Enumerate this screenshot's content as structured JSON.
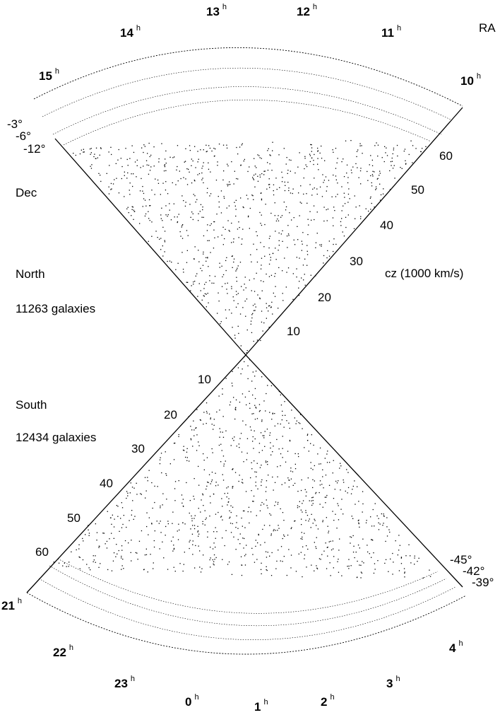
{
  "figure": {
    "ra_axis_label": "RA",
    "cz_axis_label": "cz (1000 km/s)",
    "dec_label": "Dec",
    "north": {
      "title": "North",
      "count_text": "11263 galaxies",
      "dec_labels": [
        "-3°",
        "-6°",
        "-12°"
      ],
      "ra_hours": [
        "15",
        "14",
        "13",
        "12",
        "11",
        "10"
      ],
      "cz_ticks": [
        "10",
        "20",
        "30",
        "40",
        "50",
        "60"
      ]
    },
    "south": {
      "title": "South",
      "count_text": "12434 galaxies",
      "dec_labels": [
        "-45°",
        "-42°",
        "-39°"
      ],
      "ra_hours": [
        "21",
        "22",
        "23",
        "0",
        "1",
        "2",
        "3",
        "4"
      ],
      "cz_ticks": [
        "10",
        "20",
        "30",
        "40",
        "50",
        "60"
      ]
    },
    "hour_superscript": "h",
    "colors": {
      "ink": "#000000",
      "background": "#ffffff"
    }
  }
}
